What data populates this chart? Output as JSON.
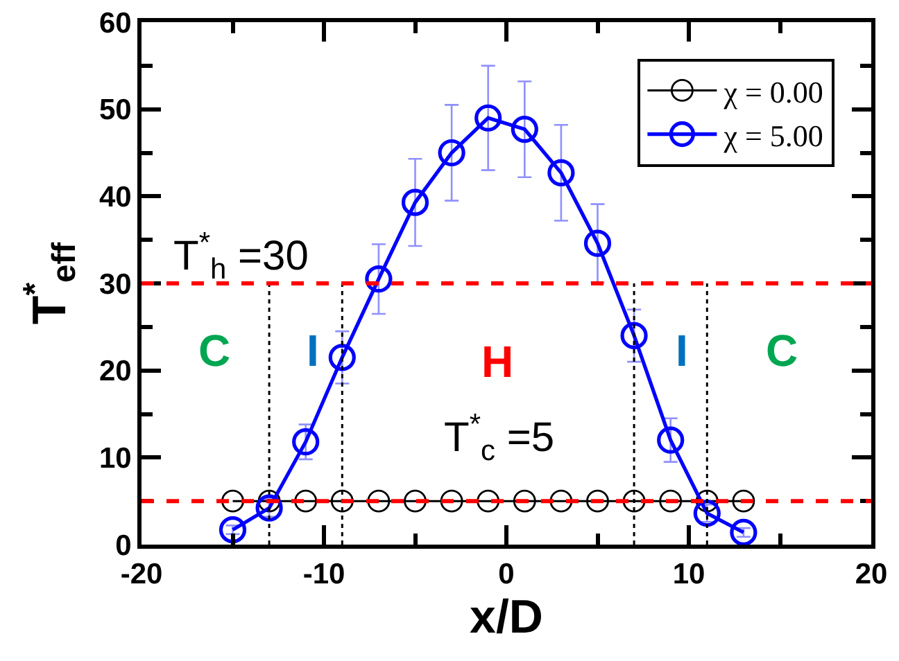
{
  "chart_data": {
    "type": "line",
    "xlabel": "x/D",
    "ylabel": "T$^{*}$$_{eff}$",
    "xlim": [
      -20,
      20
    ],
    "xticks": [
      -20,
      {
        "value": -15,
        "label": null
      },
      -10,
      {
        "value": -5,
        "label": null
      },
      0,
      {
        "value": 5,
        "label": null
      },
      10,
      {
        "value": 15,
        "label": null
      },
      20
    ],
    "ylim": [
      0,
      60
    ],
    "yticks": [
      0,
      {
        "value": 5,
        "label": null
      },
      10,
      {
        "value": 15,
        "label": null
      },
      20,
      {
        "value": 25,
        "label": null
      },
      30,
      {
        "value": 35,
        "label": null
      },
      40,
      {
        "value": 45,
        "label": null
      },
      50,
      {
        "value": 55,
        "label": null
      },
      60
    ],
    "series": [
      {
        "name": "χ = 0.00",
        "color": "#000000",
        "x": [
          -15,
          -13,
          -11,
          -9,
          -7,
          -5,
          -3,
          -1,
          1,
          3,
          5,
          7,
          9,
          11,
          13
        ],
        "values": [
          5,
          5,
          5,
          5,
          5,
          5,
          5,
          5,
          5,
          5,
          5,
          5,
          5,
          5,
          5
        ]
      },
      {
        "name": "χ = 5.00",
        "color": "#0000ff",
        "x": [
          -15,
          -13,
          -11,
          -9,
          -7,
          -5,
          -3,
          -1,
          1,
          3,
          5,
          7,
          9,
          11,
          13
        ],
        "values": [
          1.7,
          4.2,
          11.8,
          21.5,
          30.5,
          39.3,
          45,
          49,
          47.7,
          42.7,
          34.6,
          24,
          12,
          3.6,
          1.4
        ],
        "errors": [
          0.5,
          1,
          2,
          3,
          4,
          5,
          5.5,
          6,
          5.5,
          5.5,
          4.5,
          3,
          2.5,
          1,
          0.5
        ]
      },
      {
        "type": "line",
        "color": "#000000",
        "marker": "none",
        "line_style": "dotted",
        "x": [
          -13,
          -13
        ],
        "values": [
          0,
          30
        ]
      },
      {
        "type": "line",
        "color": "#000000",
        "marker": "none",
        "line_style": "dotted",
        "x": [
          -9,
          -9
        ],
        "values": [
          0,
          30
        ]
      },
      {
        "type": "line",
        "color": "#000000",
        "marker": "none",
        "line_style": "dotted",
        "x": [
          7,
          7
        ],
        "values": [
          0,
          30
        ]
      },
      {
        "type": "line",
        "color": "#000000",
        "marker": "none",
        "line_style": "dotted",
        "x": [
          11,
          11
        ],
        "values": [
          0,
          30
        ]
      }
    ],
    "ref_lines": [
      {
        "axis": "y",
        "value": 30,
        "label": "T$^{*}$$_{h}$ =30",
        "color": "#ff0000",
        "line_style": "dashed"
      },
      {
        "axis": "y",
        "value": 5,
        "label": "T$^{*}$$_{c}$ =5",
        "color": "#ff0000",
        "line_style": "dashed"
      }
    ],
    "annotations": [
      "C",
      "I",
      "H",
      "I",
      "C"
    ],
    "legend": "top right",
    "marker": "circle",
    "line_style": "solid"
  }
}
